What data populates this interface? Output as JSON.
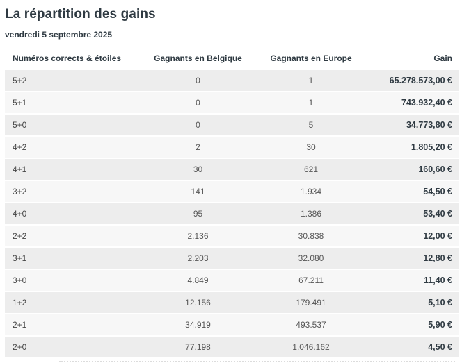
{
  "page": {
    "title": "La répartition des gains",
    "date": "vendredi 5 septembre 2025"
  },
  "table": {
    "columns": [
      "Numéros corrects & étoiles",
      "Gagnants en Belgique",
      "Gagnants en Europe",
      "Gain"
    ],
    "rows": [
      {
        "combo": "5+2",
        "belgium": "0",
        "europe": "1",
        "gain": "65.278.573,00 €"
      },
      {
        "combo": "5+1",
        "belgium": "0",
        "europe": "1",
        "gain": "743.932,40 €"
      },
      {
        "combo": "5+0",
        "belgium": "0",
        "europe": "5",
        "gain": "34.773,80 €"
      },
      {
        "combo": "4+2",
        "belgium": "2",
        "europe": "30",
        "gain": "1.805,20 €"
      },
      {
        "combo": "4+1",
        "belgium": "30",
        "europe": "621",
        "gain": "160,60 €"
      },
      {
        "combo": "3+2",
        "belgium": "141",
        "europe": "1.934",
        "gain": "54,50 €"
      },
      {
        "combo": "4+0",
        "belgium": "95",
        "europe": "1.386",
        "gain": "53,40 €"
      },
      {
        "combo": "2+2",
        "belgium": "2.136",
        "europe": "30.838",
        "gain": "12,00 €"
      },
      {
        "combo": "3+1",
        "belgium": "2.203",
        "europe": "32.080",
        "gain": "12,80 €"
      },
      {
        "combo": "3+0",
        "belgium": "4.849",
        "europe": "67.211",
        "gain": "11,40 €"
      },
      {
        "combo": "1+2",
        "belgium": "12.156",
        "europe": "179.491",
        "gain": "5,10 €"
      },
      {
        "combo": "2+1",
        "belgium": "34.919",
        "europe": "493.537",
        "gain": "5,90 €"
      },
      {
        "combo": "2+0",
        "belgium": "77.198",
        "europe": "1.046.162",
        "gain": "4,50 €"
      }
    ]
  },
  "colors": {
    "heading": "#2f3a42",
    "cell_text": "#565656",
    "row_odd_bg": "#ededed",
    "row_even_bg": "#f7f7f7"
  }
}
